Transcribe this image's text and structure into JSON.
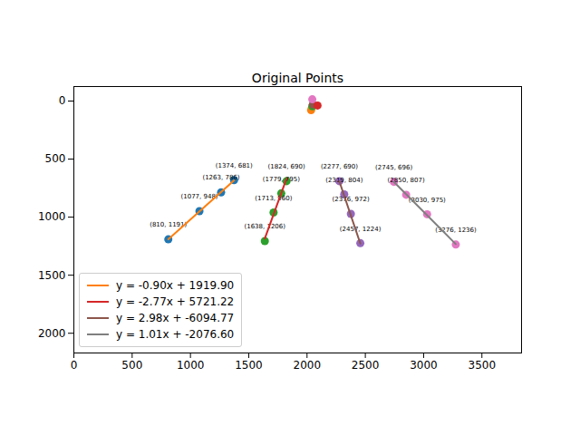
{
  "chart_data": {
    "type": "scatter",
    "title": "Original Points",
    "xlim": [
      0,
      3840
    ],
    "ylim": [
      2170,
      -125
    ],
    "xticks": [
      0,
      500,
      1000,
      1500,
      2000,
      2500,
      3000,
      3500
    ],
    "yticks": [
      0,
      500,
      1000,
      1500,
      2000
    ],
    "legend": "lower left",
    "series": [
      {
        "type": "scatter",
        "color": "#1f77b4",
        "x": [
          810,
          1077,
          1263,
          1374
        ],
        "y": [
          1191,
          948,
          786,
          681
        ],
        "value_labels": [
          "(810, 1191)",
          "(1077, 948)",
          "(1263, 786)",
          "(1374, 681)"
        ]
      },
      {
        "type": "scatter",
        "color": "#2ca02c",
        "x": [
          1638,
          1713,
          1779,
          1824
        ],
        "y": [
          1206,
          960,
          795,
          690
        ],
        "value_labels": [
          "(1638, 1206)",
          "(1713, 960)",
          "(1779, 795)",
          "(1824, 690)"
        ]
      },
      {
        "type": "scatter",
        "color": "#9467bd",
        "x": [
          2457,
          2376,
          2319,
          2277
        ],
        "y": [
          1224,
          972,
          804,
          690
        ],
        "value_labels": [
          "(2457, 1224)",
          "(2376, 972)",
          "(2319, 804)",
          "(2277, 690)"
        ]
      },
      {
        "type": "scatter",
        "color": "#e377c2",
        "x": [
          3276,
          3030,
          2850,
          2745
        ],
        "y": [
          1236,
          975,
          807,
          696
        ],
        "value_labels": [
          "(3276, 1236)",
          "(3030, 975)",
          "(2850, 807)",
          "(2745, 696)"
        ]
      },
      {
        "type": "scatter",
        "colors": [
          "#ff7f0e",
          "#2ca02c",
          "#8c564b",
          "#d62728",
          "#e377c2"
        ],
        "x": [
          2035,
          2045,
          2050,
          2090,
          2045
        ],
        "y": [
          78,
          45,
          30,
          38,
          -15
        ]
      },
      {
        "type": "line",
        "name": "y = -0.90x + 1919.90",
        "color": "#ff7f0e",
        "x": [
          810,
          1374
        ],
        "y": [
          1191,
          683
        ]
      },
      {
        "type": "line",
        "name": "y = -2.77x + 5721.22",
        "color": "#d62728",
        "x": [
          1638,
          1824
        ],
        "y": [
          1184,
          669
        ]
      },
      {
        "type": "line",
        "name": "y = 2.98x + -6094.77",
        "color": "#8c564b",
        "x": [
          2277,
          2457
        ],
        "y": [
          691,
          1227
        ]
      },
      {
        "type": "line",
        "name": "y = 1.01x + -2076.60",
        "color": "#7f7f7f",
        "x": [
          2745,
          3276
        ],
        "y": [
          696,
          1232
        ]
      }
    ]
  }
}
